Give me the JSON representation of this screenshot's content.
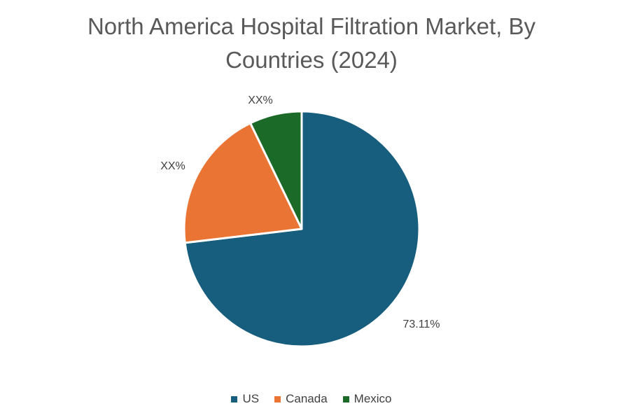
{
  "chart_data": {
    "type": "pie",
    "title": [
      "North America Hospital Filtration Market, By",
      "Countries (2024)"
    ],
    "start_angle_deg": 0,
    "direction": "clockwise",
    "series": [
      {
        "name": "US",
        "value": 73.11,
        "label": "73.11%",
        "color": "#175E7E"
      },
      {
        "name": "Canada",
        "value": 19.7,
        "label": "XX%",
        "color": "#EA7434"
      },
      {
        "name": "Mexico",
        "value": 7.19,
        "label": "XX%",
        "color": "#1C6A27"
      }
    ],
    "legend": {
      "position": "bottom"
    }
  }
}
